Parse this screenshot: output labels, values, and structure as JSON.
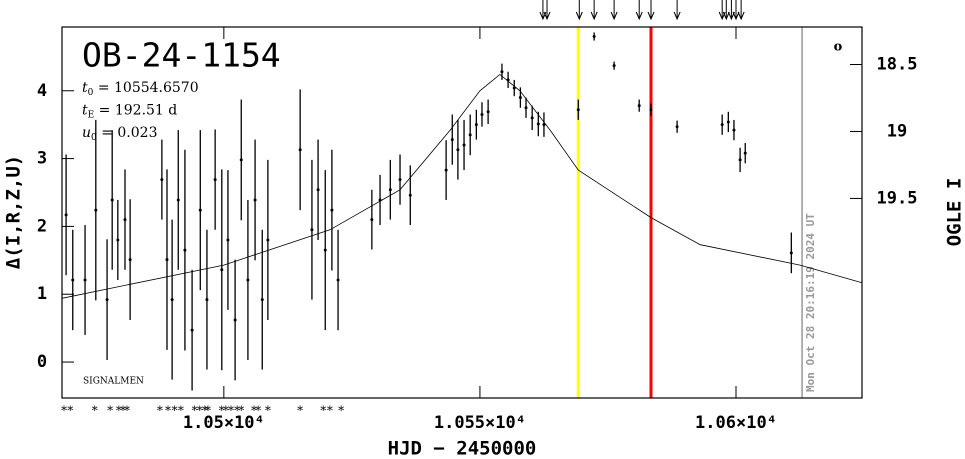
{
  "chart_data": {
    "type": "lightcurve",
    "title": "OB-24-1154",
    "params": [
      {
        "symbol": "t",
        "sub": "0",
        "text": " = 10554.6570"
      },
      {
        "symbol": "t",
        "sub": "E",
        "text": " = 192.51 d"
      },
      {
        "symbol": "u",
        "sub": "0",
        "text": " = 0.023"
      }
    ],
    "footnote": "SIGNALMEN",
    "timestamp": "Mon Oct 28 20:16:19 2024 UT",
    "corner_mark": "o",
    "x_label": "HJD − 2450000",
    "y_label": "Δ(I,R,Z,U)",
    "y2_label": "OGLE I",
    "xlim": [
      10468.4,
      10624.6
    ],
    "xticks": [
      {
        "value": 10500,
        "label": "1.05×10⁴"
      },
      {
        "value": 10550,
        "label": "1.055×10⁴"
      },
      {
        "value": 10600,
        "label": "1.06×10⁴"
      }
    ],
    "ylim": [
      -0.53,
      4.94
    ],
    "yticks": [
      0,
      1,
      2,
      3,
      4
    ],
    "y2lim": [
      20.99,
      18.22
    ],
    "y2ticks": [
      18.5,
      19,
      19.5
    ],
    "series": [
      {
        "name": "data",
        "color": "#000000",
        "x": [
          10469.2,
          10470.5,
          10472.9,
          10475.0,
          10477.2,
          10478.2,
          10479.3,
          10480.7,
          10481.7,
          10487.9,
          10488.9,
          10489.9,
          10491.1,
          10492.4,
          10493.8,
          10495.4,
          10496.7,
          10498.3,
          10499.6,
          10500.8,
          10502.2,
          10503.4,
          10504.7,
          10506.1,
          10507.5,
          10508.6,
          10514.9,
          10517.2,
          10518.4,
          10519.8,
          10521.1,
          10522.3,
          10528.9,
          10530.5,
          10532.5,
          10534.4,
          10536.4,
          10543.4,
          10544.6,
          10545.7,
          10546.9,
          10548.1,
          10549.3,
          10550.4,
          10551.6,
          10554.3,
          10555.5,
          10556.7,
          10557.9,
          10559.0,
          10560.2,
          10561.4,
          10562.5,
          10569.2,
          10572.3,
          10576.2,
          10581.1,
          10583.4,
          10588.5,
          10597.3,
          10598.5,
          10599.6,
          10600.8,
          10601.8,
          10610.8
        ],
        "values": [
          2.17,
          1.21,
          1.21,
          2.24,
          0.92,
          2.39,
          1.8,
          2.1,
          1.51,
          2.69,
          1.51,
          0.92,
          2.39,
          1.65,
          0.47,
          2.24,
          0.92,
          2.69,
          1.36,
          1.8,
          0.62,
          2.98,
          1.21,
          2.39,
          0.92,
          1.8,
          3.13,
          1.95,
          2.54,
          1.65,
          2.24,
          1.21,
          2.1,
          2.39,
          2.54,
          2.69,
          2.46,
          2.83,
          3.28,
          3.13,
          3.2,
          3.35,
          3.5,
          3.65,
          3.69,
          4.28,
          4.16,
          4.04,
          3.9,
          3.75,
          3.6,
          3.51,
          3.5,
          3.72,
          4.8,
          4.37,
          3.78,
          3.72,
          3.47,
          3.5,
          3.54,
          3.42,
          2.98,
          3.08,
          1.61
        ],
        "errors": [
          0.89,
          0.74,
          0.81,
          1.33,
          0.89,
          1.03,
          0.59,
          0.74,
          0.89,
          0.59,
          1.33,
          1.18,
          1.03,
          1.48,
          0.89,
          1.18,
          1.03,
          0.74,
          1.48,
          1.03,
          0.89,
          0.89,
          1.18,
          0.89,
          1.03,
          1.18,
          0.89,
          1.03,
          0.74,
          1.18,
          0.89,
          0.74,
          0.44,
          0.37,
          0.44,
          0.37,
          0.44,
          0.44,
          0.37,
          0.44,
          0.37,
          0.3,
          0.22,
          0.18,
          0.18,
          0.12,
          0.12,
          0.12,
          0.15,
          0.15,
          0.18,
          0.18,
          0.18,
          0.15,
          0.06,
          0.06,
          0.09,
          0.09,
          0.09,
          0.15,
          0.15,
          0.15,
          0.18,
          0.15,
          0.3
        ]
      }
    ],
    "model": {
      "color": "#000000",
      "x": [
        10468.4,
        10500,
        10520.7,
        10534.4,
        10544.2,
        10550,
        10553.9,
        10557.8,
        10563.7,
        10569.2,
        10583.4,
        10593,
        10612.5,
        10624.6
      ],
      "values": [
        0.94,
        1.43,
        1.95,
        2.54,
        3.42,
        4.0,
        4.24,
        4.0,
        3.42,
        2.83,
        2.13,
        1.73,
        1.43,
        1.17
      ]
    },
    "vlines": [
      {
        "x": 10569.2,
        "color": "#ffff00"
      },
      {
        "x": 10583.4,
        "color": "#ff0000"
      },
      {
        "x": 10612.9,
        "color": "#999999"
      }
    ],
    "arrows_x": [
      10562.3,
      10563.1,
      10569.4,
      10572.3,
      10576.2,
      10581.1,
      10583.4,
      10588.5,
      10597.3,
      10598.1,
      10599.1,
      10600.0,
      10601.0
    ],
    "asterisk_symbol": "*",
    "asterisks_x": [
      10468.8,
      10470.0,
      10474.8,
      10477.8,
      10479.5,
      10480.3,
      10481.1,
      10487.5,
      10489.1,
      10490.4,
      10491.6,
      10494.3,
      10495.3,
      10496.3,
      10496.9,
      10499.6,
      10500.4,
      10501.4,
      10502.6,
      10503.4,
      10505.9,
      10506.7,
      10508.6,
      10514.9,
      10519.4,
      10520.7,
      10522.9
    ]
  }
}
